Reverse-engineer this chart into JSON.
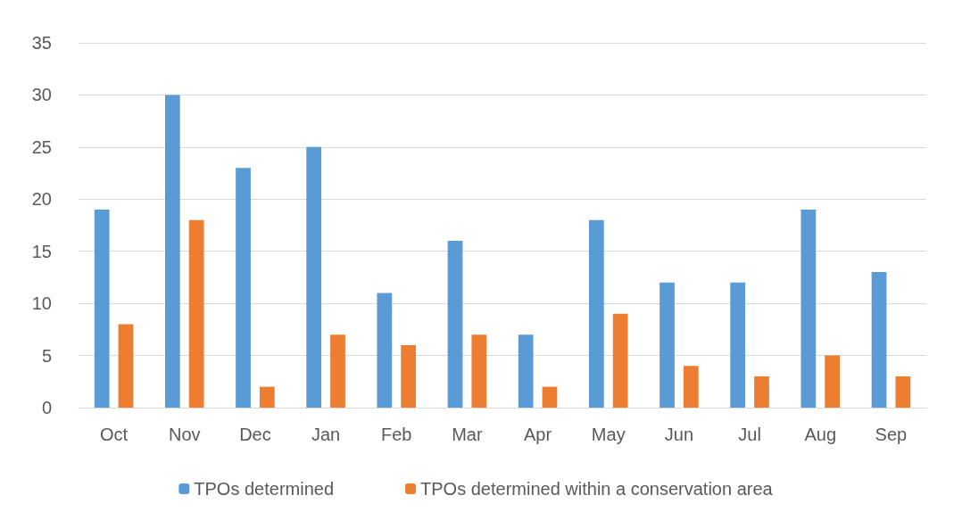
{
  "chart_data": {
    "type": "bar",
    "categories": [
      "Oct",
      "Nov",
      "Dec",
      "Jan",
      "Feb",
      "Mar",
      "Apr",
      "May",
      "Jun",
      "Jul",
      "Aug",
      "Sep"
    ],
    "series": [
      {
        "name": "TPOs determined",
        "color": "#5b9bd5",
        "values": [
          19,
          30,
          23,
          25,
          11,
          16,
          7,
          18,
          12,
          12,
          19,
          13
        ]
      },
      {
        "name": "TPOs determined within a conservation area",
        "color": "#ed7d31",
        "values": [
          8,
          18,
          2,
          7,
          6,
          7,
          2,
          9,
          4,
          3,
          5,
          3
        ]
      }
    ],
    "ylim": [
      0,
      35
    ],
    "yticks": [
      0,
      5,
      10,
      15,
      20,
      25,
      30,
      35
    ],
    "grid": "y",
    "legend": "bottom"
  }
}
